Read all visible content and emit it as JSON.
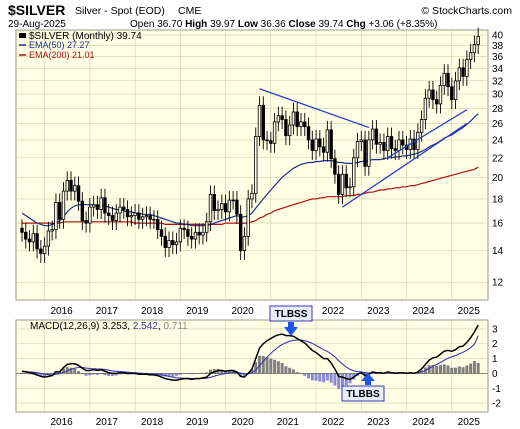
{
  "header": {
    "symbol": "$SILVER",
    "name": "Silver - Spot (EOD)",
    "exchange": "CME",
    "credit": "© StockCharts.com",
    "date": "29-Aug-2025",
    "open_label": "Open",
    "open": "36.70",
    "high_label": "High",
    "high": "39.97",
    "low_label": "Low",
    "low": "36.36",
    "close_label": "Close",
    "close": "39.74",
    "chg_label": "Chg",
    "chg": "+3.06 (+8.35%)"
  },
  "price_legend": {
    "main": "$SILVER (Monthly) 39.74",
    "ema50": "EMA(50) 27.27",
    "ema200": "EMA(200) 21.01"
  },
  "macd_legend": {
    "label": "MACD(12,26,9)",
    "macd": "3.253",
    "signal": "2.542",
    "hist": "0.711"
  },
  "annotations": {
    "tlbss": "TLBSS",
    "tlbbs": "TLBBS"
  },
  "colors": {
    "panel_bg": "#ffffe6",
    "grid": "#cfcfa8",
    "candle": "#000000",
    "ema50": "#1f2e8a",
    "ema200": "#b01010",
    "trendline": "#2a3fd0",
    "macd_line": "#000000",
    "signal_line": "#3a3ab0",
    "hist_pos": "#7f7f7f",
    "hist_neg": "#8a8ad6",
    "label_box": "#e8ecff",
    "arrow": "#1e56e8"
  },
  "chart_data": {
    "type": "candlestick",
    "interval": "monthly",
    "x_tick_labels": [
      "2016",
      "2017",
      "2018",
      "2019",
      "2020",
      "2021",
      "2022",
      "2023",
      "2024",
      "2025"
    ],
    "y_tick_labels": [
      "12",
      "14",
      "16",
      "18",
      "20",
      "22",
      "24",
      "26",
      "28",
      "30",
      "32",
      "34",
      "36",
      "38",
      "40"
    ],
    "y_range": [
      11,
      41
    ],
    "y_scale": "log",
    "start": "2015-07",
    "close": [
      15.3,
      14.8,
      14.6,
      15.2,
      14.1,
      13.8,
      14.3,
      15.4,
      15.5,
      17.7,
      16.3,
      18.7,
      19.7,
      18.7,
      19.2,
      17.8,
      16.2,
      16.0,
      17.3,
      17.5,
      17.1,
      18.1,
      16.8,
      16.6,
      16.2,
      16.8,
      17.3,
      17.1,
      16.5,
      16.6,
      16.8,
      16.3,
      16.5,
      16.6,
      16.3,
      16.3,
      15.5,
      15.0,
      14.2,
      14.7,
      14.4,
      14.6,
      15.6,
      15.5,
      15.0,
      14.8,
      15.3,
      15.1,
      15.3,
      16.1,
      18.4,
      17.0,
      17.1,
      17.6,
      16.9,
      17.9,
      17.9,
      16.7,
      14.0,
      15.0,
      18.0,
      18.5,
      24.4,
      28.4,
      24.0,
      23.9,
      23.6,
      26.2,
      27.0,
      26.5,
      24.5,
      25.8,
      27.5,
      25.6,
      26.2,
      25.6,
      24.0,
      22.8,
      24.1,
      23.2,
      22.6,
      25.2,
      21.9,
      20.3,
      18.4,
      20.3,
      19.0,
      19.1,
      22.0,
      23.8,
      24.0,
      21.1,
      24.0,
      25.3,
      23.5,
      23.7,
      22.8,
      24.4,
      23.0,
      22.8,
      24.0,
      23.4,
      22.9,
      24.1,
      22.9,
      24.9,
      26.5,
      29.4,
      30.6,
      29.2,
      28.6,
      31.3,
      33.2,
      31.1,
      29.2,
      32.0,
      34.1,
      32.7,
      35.5,
      36.7,
      38.2,
      39.7
    ],
    "ema50": [
      16.8,
      16.6,
      16.4,
      16.2,
      16.0,
      15.9,
      15.8,
      15.8,
      15.9,
      16.0,
      16.2,
      16.5,
      16.9,
      17.2,
      17.4,
      17.5,
      17.5,
      17.5,
      17.5,
      17.5,
      17.4,
      17.4,
      17.4,
      17.3,
      17.2,
      17.1,
      17.1,
      17.0,
      16.9,
      16.9,
      16.8,
      16.8,
      16.7,
      16.7,
      16.7,
      16.6,
      16.5,
      16.4,
      16.3,
      16.2,
      16.1,
      16.0,
      16.0,
      15.9,
      15.9,
      15.8,
      15.8,
      15.8,
      15.8,
      15.8,
      15.9,
      16.0,
      16.1,
      16.2,
      16.3,
      16.4,
      16.5,
      16.6,
      16.5,
      16.5,
      16.6,
      16.8,
      17.2,
      17.6,
      18.0,
      18.4,
      18.8,
      19.2,
      19.6,
      20.0,
      20.3,
      20.6,
      20.9,
      21.1,
      21.3,
      21.4,
      21.5,
      21.5,
      21.6,
      21.6,
      21.7,
      21.7,
      21.7,
      21.6,
      21.5,
      21.5,
      21.4,
      21.4,
      21.4,
      21.5,
      21.6,
      21.6,
      21.7,
      21.8,
      21.8,
      21.8,
      21.9,
      22.0,
      22.0,
      22.1,
      22.1,
      22.2,
      22.2,
      22.3,
      22.4,
      22.5,
      22.7,
      22.9,
      23.2,
      23.4,
      23.6,
      23.9,
      24.2,
      24.4,
      24.6,
      24.9,
      25.2,
      25.5,
      25.9,
      26.3,
      26.8,
      27.27
    ],
    "ema200": [
      16.0,
      16.0,
      16.0,
      16.0,
      16.0,
      16.0,
      16.0,
      16.0,
      16.0,
      16.0,
      16.0,
      16.1,
      16.1,
      16.1,
      16.1,
      16.1,
      16.1,
      16.1,
      16.1,
      16.1,
      16.1,
      16.1,
      16.1,
      16.1,
      16.1,
      16.1,
      16.1,
      16.1,
      16.1,
      16.1,
      16.0,
      16.0,
      16.0,
      16.0,
      16.0,
      16.0,
      16.0,
      16.0,
      15.9,
      15.9,
      15.9,
      15.9,
      15.9,
      15.9,
      15.9,
      15.9,
      15.9,
      15.9,
      15.9,
      15.9,
      15.9,
      15.9,
      15.9,
      15.9,
      16.0,
      16.0,
      16.0,
      16.0,
      16.0,
      16.0,
      16.0,
      16.1,
      16.2,
      16.4,
      16.5,
      16.7,
      16.8,
      17.0,
      17.1,
      17.2,
      17.3,
      17.4,
      17.5,
      17.6,
      17.7,
      17.8,
      17.9,
      18.0,
      18.0,
      18.1,
      18.1,
      18.2,
      18.2,
      18.2,
      18.2,
      18.2,
      18.3,
      18.3,
      18.3,
      18.4,
      18.4,
      18.5,
      18.6,
      18.6,
      18.7,
      18.8,
      18.8,
      18.9,
      18.9,
      19.0,
      19.0,
      19.1,
      19.1,
      19.2,
      19.2,
      19.3,
      19.4,
      19.5,
      19.6,
      19.7,
      19.8,
      19.9,
      20.0,
      20.1,
      20.2,
      20.3,
      20.4,
      20.5,
      20.6,
      20.7,
      20.8,
      21.01
    ],
    "trendlines": [
      {
        "from": [
          "2020-10",
          30.8
        ],
        "to": [
          "2023-03",
          25.5
        ]
      },
      {
        "from": [
          "2022-08",
          17.3
        ],
        "to": [
          "2025-05",
          26.0
        ]
      },
      {
        "from": [
          "2023-08",
          22.0
        ],
        "to": [
          "2025-05",
          27.8
        ]
      }
    ],
    "macd": {
      "y_tick_labels": [
        "-2",
        "-1",
        "0",
        "1",
        "2",
        "3"
      ],
      "y_range": [
        -2.6,
        3.6
      ],
      "macd_line": [
        0.15,
        0.1,
        0.05,
        0.0,
        -0.1,
        -0.2,
        -0.25,
        -0.2,
        -0.15,
        0.1,
        0.1,
        0.4,
        0.6,
        0.65,
        0.65,
        0.55,
        0.35,
        0.2,
        0.2,
        0.25,
        0.2,
        0.25,
        0.15,
        0.05,
        0.0,
        0.0,
        0.05,
        0.05,
        0.0,
        0.0,
        0.0,
        -0.05,
        -0.05,
        -0.05,
        -0.1,
        -0.1,
        -0.15,
        -0.25,
        -0.35,
        -0.4,
        -0.45,
        -0.45,
        -0.4,
        -0.35,
        -0.35,
        -0.4,
        -0.35,
        -0.35,
        -0.3,
        -0.25,
        0.0,
        0.1,
        0.2,
        0.2,
        0.15,
        0.2,
        0.2,
        0.1,
        -0.2,
        -0.25,
        0.0,
        0.3,
        1.0,
        1.7,
        2.0,
        2.2,
        2.35,
        2.5,
        2.6,
        2.65,
        2.55,
        2.55,
        2.5,
        2.35,
        2.2,
        2.05,
        1.8,
        1.55,
        1.4,
        1.2,
        1.0,
        1.0,
        0.7,
        0.3,
        -0.2,
        -0.25,
        -0.35,
        -0.4,
        -0.25,
        -0.05,
        0.05,
        -0.15,
        -0.05,
        0.1,
        0.05,
        0.05,
        0.0,
        0.1,
        0.05,
        0.0,
        0.05,
        0.05,
        0.0,
        0.05,
        0.0,
        0.1,
        0.3,
        0.6,
        0.9,
        1.05,
        1.1,
        1.3,
        1.5,
        1.55,
        1.5,
        1.6,
        1.8,
        1.85,
        2.1,
        2.4,
        2.8,
        3.253
      ],
      "signal_line": [
        0.15,
        0.13,
        0.11,
        0.08,
        0.05,
        0.0,
        -0.05,
        -0.08,
        -0.1,
        -0.05,
        -0.02,
        0.06,
        0.17,
        0.27,
        0.35,
        0.4,
        0.4,
        0.36,
        0.33,
        0.32,
        0.3,
        0.29,
        0.26,
        0.22,
        0.17,
        0.14,
        0.12,
        0.1,
        0.08,
        0.06,
        0.05,
        0.03,
        0.01,
        0.0,
        -0.02,
        -0.04,
        -0.06,
        -0.1,
        -0.15,
        -0.2,
        -0.25,
        -0.29,
        -0.31,
        -0.32,
        -0.33,
        -0.34,
        -0.35,
        -0.35,
        -0.34,
        -0.32,
        -0.26,
        -0.19,
        -0.11,
        -0.05,
        -0.01,
        0.03,
        0.06,
        0.07,
        0.02,
        -0.03,
        -0.02,
        0.04,
        0.23,
        0.52,
        0.82,
        1.1,
        1.35,
        1.58,
        1.78,
        1.95,
        2.07,
        2.17,
        2.23,
        2.26,
        2.25,
        2.21,
        2.13,
        2.02,
        1.89,
        1.75,
        1.6,
        1.48,
        1.32,
        1.12,
        0.86,
        0.64,
        0.44,
        0.27,
        0.17,
        0.12,
        0.1,
        0.05,
        0.03,
        0.04,
        0.04,
        0.04,
        0.03,
        0.05,
        0.05,
        0.04,
        0.04,
        0.04,
        0.03,
        0.04,
        0.03,
        0.04,
        0.1,
        0.2,
        0.34,
        0.48,
        0.6,
        0.74,
        0.89,
        1.02,
        1.12,
        1.21,
        1.33,
        1.43,
        1.56,
        1.73,
        1.97,
        2.542
      ]
    }
  }
}
